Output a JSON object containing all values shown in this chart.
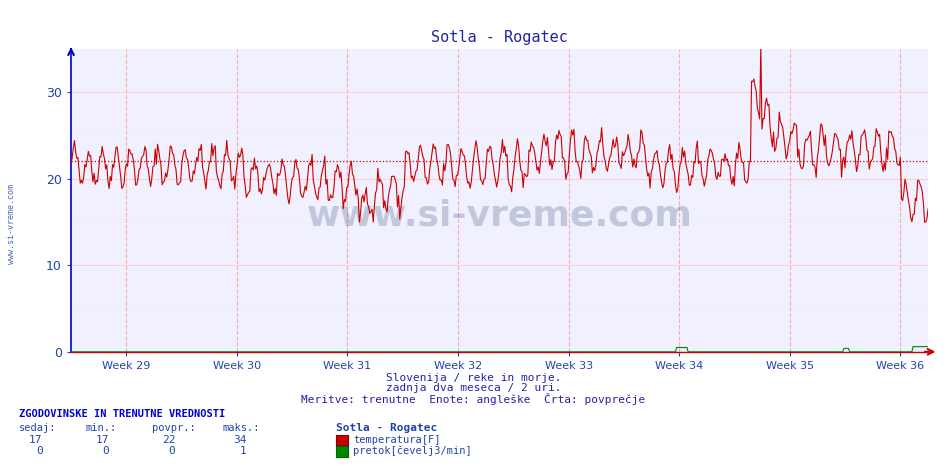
{
  "title": "Sotla - Rogatec",
  "title_color": "#2222aa",
  "bg_color": "#ffffff",
  "plot_bg_color": "#f0f0ff",
  "grid_color_major": "#ffcccc",
  "xlim": [
    0,
    744
  ],
  "ylim": [
    0,
    35
  ],
  "yticks": [
    0,
    10,
    20,
    30
  ],
  "week_labels": [
    "Week 29",
    "Week 30",
    "Week 31",
    "Week 32",
    "Week 33",
    "Week 34",
    "Week 35",
    "Week 36"
  ],
  "week_positions": [
    48,
    144,
    240,
    336,
    432,
    528,
    624,
    720
  ],
  "avg_line_y": 22,
  "avg_line_color": "#cc0000",
  "temp_line_color": "#cc0000",
  "flow_line_color": "#008800",
  "axis_color": "#2244aa",
  "subtitle1": "Slovenija / reke in morje.",
  "subtitle2": "zadnja dva meseca / 2 uri.",
  "subtitle3": "Meritve: trenutne  Enote: angleške  Črta: povprečje",
  "footer_title": "ZGODOVINSKE IN TRENUTNE VREDNOSTI",
  "footer_col1": "sedaj:",
  "footer_col2": "min.:",
  "footer_col3": "povpr.:",
  "footer_col4": "maks.:",
  "footer_station": "Sotla - Rogatec",
  "footer_temp_label": "temperatura[F]",
  "footer_flow_label": "pretok[čevelj3/min]",
  "footer_temp_values": [
    17,
    17,
    22,
    34
  ],
  "footer_flow_values": [
    0,
    0,
    0,
    1
  ],
  "watermark": "www.si-vreme.com",
  "watermark_color": "#1a3a6a",
  "sidebar_text": "www.si-vreme.com",
  "sidebar_color": "#2244aa"
}
